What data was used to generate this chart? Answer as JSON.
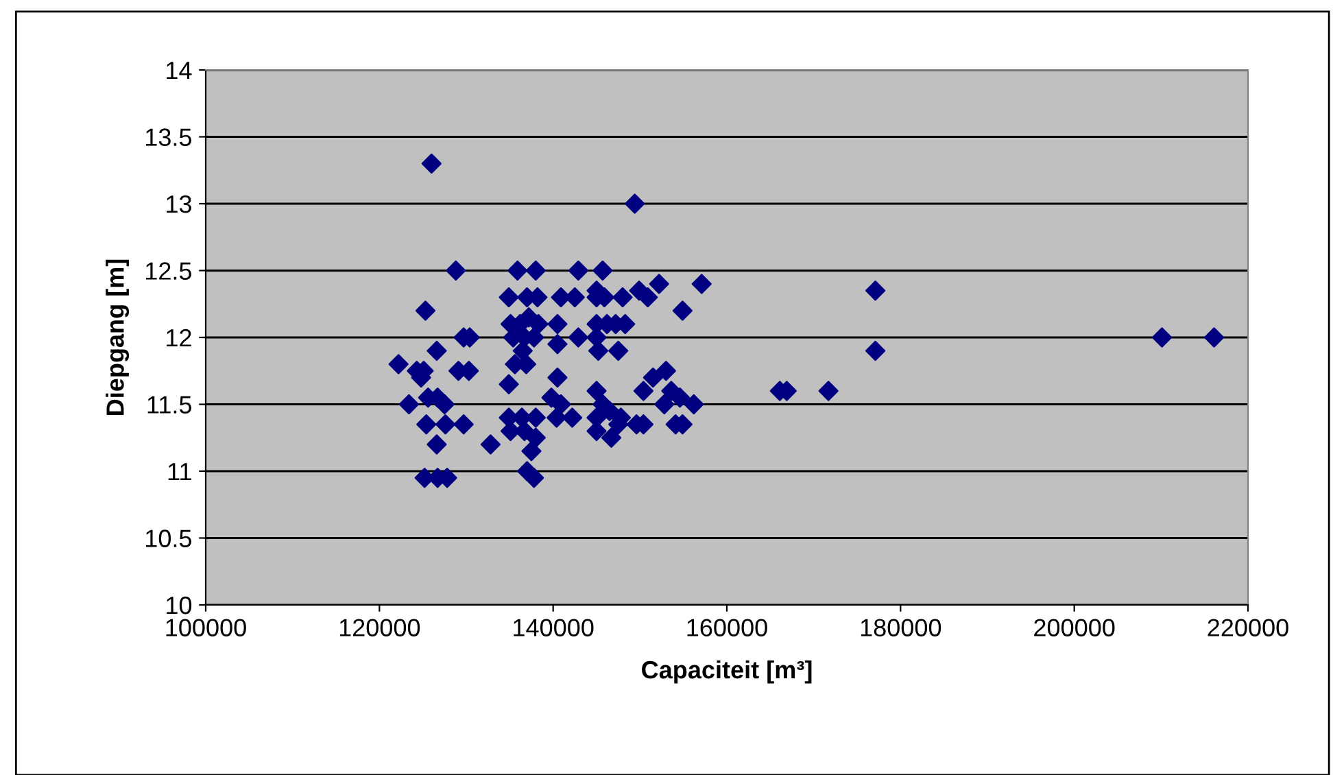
{
  "chart_data": {
    "type": "scatter",
    "xlabel": "Capaciteit [m³]",
    "ylabel": "Diepgang [m]",
    "xlim": [
      100000,
      220000
    ],
    "xticks": [
      100000,
      120000,
      140000,
      160000,
      180000,
      200000,
      220000
    ],
    "ylim": [
      10,
      14
    ],
    "yticks": [
      10,
      10.5,
      11,
      11.5,
      12,
      12.5,
      13,
      13.5,
      14
    ],
    "grid": "y",
    "legend": false,
    "marker": "diamond",
    "series": [
      {
        "color": "#000080",
        "x": [
          126000,
          128800,
          125300,
          129700,
          126600,
          122200,
          124300,
          125100,
          124800,
          129100,
          123400,
          125600,
          126700,
          127500,
          125400,
          127600,
          129700,
          126600,
          125200,
          126700,
          127800,
          149400,
          135900,
          138000,
          142900,
          145700,
          134900,
          137000,
          138200,
          140900,
          142500,
          145000,
          145000,
          145900,
          148000,
          149900,
          150900,
          152200,
          154900,
          157100,
          135100,
          136200,
          137200,
          138300,
          135400,
          136700,
          137800,
          136500,
          140500,
          140500,
          142900,
          145000,
          146200,
          147200,
          148300,
          145000,
          145200,
          147500,
          130400,
          135600,
          136900,
          130300,
          134900,
          140500,
          139800,
          140900,
          140400,
          142200,
          145000,
          145700,
          150400,
          151500,
          153000,
          153600,
          152800,
          154600,
          156200,
          154100,
          154900,
          149600,
          150400,
          134900,
          136400,
          138000,
          135100,
          136700,
          138000,
          137500,
          137000,
          137800,
          132800,
          145000,
          146500,
          147800,
          145000,
          146700,
          147500,
          166100,
          166900,
          171700,
          177100,
          177100,
          210100,
          216100
        ],
        "values": [
          13.3,
          12.5,
          12.2,
          12.0,
          11.9,
          11.8,
          11.75,
          11.75,
          11.7,
          11.75,
          11.5,
          11.55,
          11.55,
          11.5,
          11.35,
          11.35,
          11.35,
          11.2,
          10.95,
          10.95,
          10.95,
          13.0,
          12.5,
          12.5,
          12.5,
          12.5,
          12.3,
          12.3,
          12.3,
          12.3,
          12.3,
          12.35,
          12.3,
          12.3,
          12.3,
          12.35,
          12.3,
          12.4,
          12.2,
          12.4,
          12.1,
          12.1,
          12.15,
          12.1,
          12.0,
          12.0,
          12.0,
          11.9,
          12.1,
          11.95,
          12.0,
          12.1,
          12.1,
          12.1,
          12.1,
          12.0,
          11.9,
          11.9,
          12.0,
          11.8,
          11.8,
          11.75,
          11.65,
          11.7,
          11.55,
          11.5,
          11.4,
          11.4,
          11.6,
          11.5,
          11.6,
          11.7,
          11.75,
          11.6,
          11.5,
          11.55,
          11.5,
          11.35,
          11.35,
          11.35,
          11.35,
          11.4,
          11.4,
          11.4,
          11.3,
          11.3,
          11.25,
          11.15,
          11.0,
          10.95,
          11.2,
          11.4,
          11.45,
          11.4,
          11.3,
          11.25,
          11.35,
          11.6,
          11.6,
          11.6,
          12.35,
          11.9,
          12.0,
          12.0
        ]
      }
    ]
  }
}
